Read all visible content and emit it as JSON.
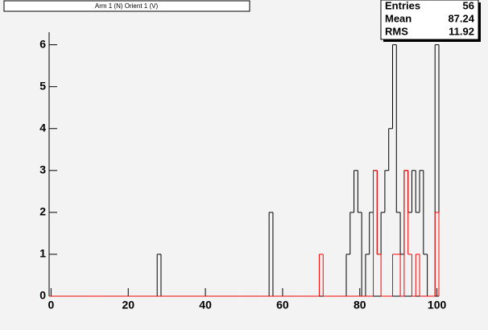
{
  "chart_data": {
    "type": "histogram",
    "title": "Arm 1 (N) Orient 1 (V)",
    "bins": [
      -0.5,
      0.5,
      1.5,
      2.5,
      3.5,
      4.5,
      5.5,
      6.5,
      7.5,
      8.5,
      9.5,
      10.5,
      11.5,
      12.5,
      13.5,
      14.5,
      15.5,
      16.5,
      17.5,
      18.5,
      19.5,
      20.5,
      21.5,
      22.5,
      23.5,
      24.5,
      25.5,
      26.5,
      27.5,
      28.5,
      29.5,
      30.5,
      31.5,
      32.5,
      33.5,
      34.5,
      35.5,
      36.5,
      37.5,
      38.5,
      39.5,
      40.5,
      41.5,
      42.5,
      43.5,
      44.5,
      45.5,
      46.5,
      47.5,
      48.5,
      49.5,
      50.5,
      51.5,
      52.5,
      53.5,
      54.5,
      55.5,
      56.5,
      57.5,
      58.5,
      59.5,
      60.5,
      61.5,
      62.5,
      63.5,
      64.5,
      65.5,
      66.5,
      67.5,
      68.5,
      69.5,
      70.5,
      71.5,
      72.5,
      73.5,
      74.5,
      75.5,
      76.5,
      77.5,
      78.5,
      79.5,
      80.5,
      81.5,
      82.5,
      83.5,
      84.5,
      85.5,
      86.5,
      87.5,
      88.5,
      89.5,
      90.5,
      91.5,
      92.5,
      93.5,
      94.5,
      95.5,
      96.5,
      97.5,
      98.5,
      99.5,
      100.5
    ],
    "series": [
      {
        "color": "#000000",
        "values": [
          0,
          0,
          0,
          0,
          0,
          0,
          0,
          0,
          0,
          0,
          0,
          0,
          0,
          0,
          0,
          0,
          0,
          0,
          0,
          0,
          0,
          0,
          0,
          0,
          0,
          0,
          0,
          0,
          1,
          0,
          0,
          0,
          0,
          0,
          0,
          0,
          0,
          0,
          0,
          0,
          0,
          0,
          0,
          0,
          0,
          0,
          0,
          0,
          0,
          0,
          0,
          0,
          0,
          0,
          0,
          0,
          0,
          2,
          0,
          0,
          0,
          0,
          0,
          0,
          0,
          0,
          0,
          0,
          0,
          0,
          0,
          0,
          0,
          0,
          0,
          0,
          0,
          1,
          2,
          3,
          2,
          0,
          1,
          2,
          3,
          1,
          2,
          3,
          4,
          6,
          2,
          1,
          3,
          2,
          3,
          2,
          3,
          1,
          0,
          0,
          6
        ]
      },
      {
        "color": "#ff0000",
        "values": [
          0,
          0,
          0,
          0,
          0,
          0,
          0,
          0,
          0,
          0,
          0,
          0,
          0,
          0,
          0,
          0,
          0,
          0,
          0,
          0,
          0,
          0,
          0,
          0,
          0,
          0,
          0,
          0,
          0,
          0,
          0,
          0,
          0,
          0,
          0,
          0,
          0,
          0,
          0,
          0,
          0,
          0,
          0,
          0,
          0,
          0,
          0,
          0,
          0,
          0,
          0,
          0,
          0,
          0,
          0,
          0,
          0,
          0,
          0,
          0,
          0,
          0,
          0,
          0,
          0,
          0,
          0,
          0,
          0,
          0,
          1,
          0,
          0,
          0,
          0,
          0,
          0,
          0,
          0,
          0,
          0,
          0,
          0,
          0,
          3,
          1,
          0,
          0,
          0,
          1,
          1,
          0,
          3,
          1,
          0,
          1,
          0,
          0,
          0,
          0,
          2
        ]
      }
    ],
    "xlim": [
      -0.5,
      100.5
    ],
    "xticks": [
      0,
      20,
      40,
      60,
      80,
      100
    ],
    "ylim": [
      0,
      6.3
    ],
    "yticks": [
      0,
      1,
      2,
      3,
      4,
      5,
      6
    ],
    "stats": [
      {
        "label": "Entries",
        "value": 56
      },
      {
        "label": "Mean",
        "value": 87.24
      },
      {
        "label": "RMS",
        "value": 11.92
      }
    ]
  }
}
